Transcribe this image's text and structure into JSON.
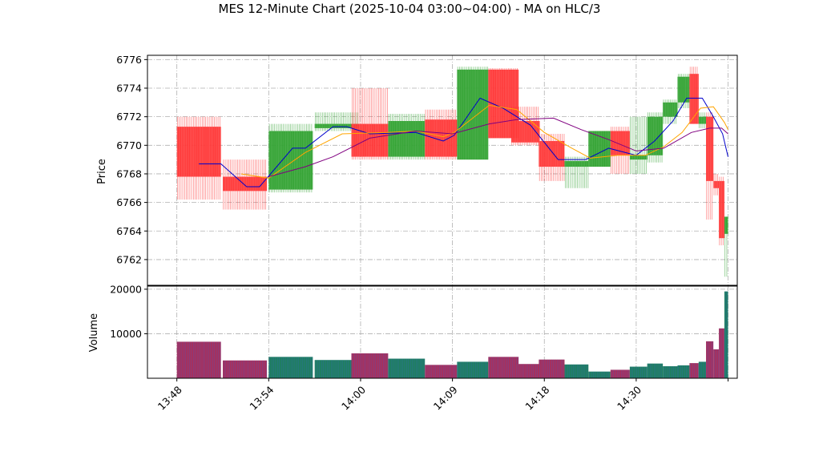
{
  "chart_data": {
    "type": "candlestick",
    "title": "MES 12-Minute Chart (2025-10-04 03:00~04:00) - MA on HLC/3",
    "price_panel": {
      "ylabel": "Price",
      "ylim": [
        6760.2,
        6776.3
      ],
      "yticks": [
        6762,
        6764,
        6766,
        6768,
        6770,
        6772,
        6774,
        6776
      ],
      "grid": true
    },
    "volume_panel": {
      "ylabel": "Volume",
      "ylim": [
        0,
        20700
      ],
      "yticks": [
        10000,
        20000
      ],
      "grid": true
    },
    "xlim": [
      -3.2,
      61.0
    ],
    "xticks": [
      {
        "x": 0,
        "label": "13:48"
      },
      {
        "x": 10,
        "label": "13:54"
      },
      {
        "x": 20,
        "label": "14:00"
      },
      {
        "x": 30,
        "label": "14:09"
      },
      {
        "x": 40,
        "label": "14:18"
      },
      {
        "x": 50,
        "label": "14:30"
      },
      {
        "x": 60,
        "label": ""
      }
    ],
    "colors": {
      "up": "#2ca02c",
      "down": "#ff3333",
      "volume_up": "#1f7f5f",
      "volume_down": "#a8305c",
      "ma_short": "#0000cc",
      "ma_mid": "#ffa500",
      "ma_long": "#800080"
    },
    "candles": [
      {
        "x0": 0,
        "x1": 4.8,
        "open": 6771.3,
        "high": 6772.0,
        "low": 6766.2,
        "close": 6767.8,
        "volume": 8200
      },
      {
        "x0": 5,
        "x1": 9.8,
        "open": 6767.8,
        "high": 6769.0,
        "low": 6765.5,
        "close": 6766.8,
        "volume": 4000
      },
      {
        "x0": 10,
        "x1": 14.8,
        "open": 6766.9,
        "high": 6771.5,
        "low": 6766.7,
        "close": 6771.0,
        "volume": 4800
      },
      {
        "x0": 15,
        "x1": 19.8,
        "open": 6771.2,
        "high": 6772.3,
        "low": 6771.0,
        "close": 6771.5,
        "volume": 4100
      },
      {
        "x0": 19,
        "x1": 23,
        "open": 6771.5,
        "high": 6774.0,
        "low": 6769.0,
        "close": 6769.2,
        "volume": 5600
      },
      {
        "x0": 23,
        "x1": 27,
        "open": 6769.2,
        "high": 6772.2,
        "low": 6769.0,
        "close": 6771.7,
        "volume": 4400
      },
      {
        "x0": 27,
        "x1": 30.5,
        "open": 6771.8,
        "high": 6772.5,
        "low": 6769.0,
        "close": 6769.2,
        "volume": 3000
      },
      {
        "x0": 30.5,
        "x1": 33.9,
        "open": 6769.0,
        "high": 6775.5,
        "low": 6769.0,
        "close": 6775.3,
        "volume": 3700
      },
      {
        "x0": 33.9,
        "x1": 37.2,
        "open": 6775.3,
        "high": 6775.4,
        "low": 6770.5,
        "close": 6770.5,
        "volume": 4800
      },
      {
        "x0": 36.4,
        "x1": 39.5,
        "open": 6771.7,
        "high": 6772.7,
        "low": 6770.0,
        "close": 6770.2,
        "volume": 3200
      },
      {
        "x0": 39.4,
        "x1": 42.2,
        "open": 6770.3,
        "high": 6770.8,
        "low": 6767.5,
        "close": 6768.5,
        "volume": 4200
      },
      {
        "x0": 42.2,
        "x1": 44.8,
        "open": 6768.5,
        "high": 6769.2,
        "low": 6767.0,
        "close": 6768.9,
        "volume": 3100
      },
      {
        "x0": 44.8,
        "x1": 47.2,
        "open": 6768.5,
        "high": 6771.0,
        "low": 6768.5,
        "close": 6771.0,
        "volume": 1500
      },
      {
        "x0": 47.2,
        "x1": 49.3,
        "open": 6771.0,
        "high": 6771.3,
        "low": 6768.0,
        "close": 6769.3,
        "volume": 1900
      },
      {
        "x0": 49.3,
        "x1": 51.2,
        "open": 6769.0,
        "high": 6772.0,
        "low": 6768.0,
        "close": 6769.3,
        "volume": 2600
      },
      {
        "x0": 51.2,
        "x1": 52.9,
        "open": 6769.3,
        "high": 6772.3,
        "low": 6768.8,
        "close": 6772.0,
        "volume": 3300
      },
      {
        "x0": 52.9,
        "x1": 54.5,
        "open": 6772.0,
        "high": 6773.2,
        "low": 6771.5,
        "close": 6773.0,
        "volume": 2700
      },
      {
        "x0": 54.5,
        "x1": 55.8,
        "open": 6773.0,
        "high": 6775.0,
        "low": 6772.6,
        "close": 6774.8,
        "volume": 2900
      },
      {
        "x0": 55.8,
        "x1": 56.8,
        "open": 6775.0,
        "high": 6775.5,
        "low": 6771.5,
        "close": 6771.5,
        "volume": 3400
      },
      {
        "x0": 56.8,
        "x1": 57.6,
        "open": 6771.5,
        "high": 6772.3,
        "low": 6771.2,
        "close": 6772.0,
        "volume": 3700
      },
      {
        "x0": 57.6,
        "x1": 58.4,
        "open": 6772.0,
        "high": 6772.3,
        "low": 6764.8,
        "close": 6767.5,
        "volume": 8300
      },
      {
        "x0": 58.4,
        "x1": 59.0,
        "open": 6767.5,
        "high": 6768.0,
        "low": 6766.5,
        "close": 6767.0,
        "volume": 6500
      },
      {
        "x0": 59.0,
        "x1": 59.6,
        "open": 6767.5,
        "high": 6767.8,
        "low": 6763.0,
        "close": 6763.5,
        "volume": 11200
      },
      {
        "x0": 59.6,
        "x1": 60.0,
        "open": 6763.8,
        "high": 6765.0,
        "low": 6760.8,
        "close": 6765.0,
        "volume": 19500
      }
    ],
    "ma_series": [
      {
        "color": "#0000cc",
        "points": [
          [
            2.4,
            6768.7
          ],
          [
            4.8,
            6768.7
          ],
          [
            7.6,
            6767.1
          ],
          [
            9,
            6767.1
          ],
          [
            12.6,
            6769.8
          ],
          [
            14,
            6769.8
          ],
          [
            17,
            6771.3
          ],
          [
            18.5,
            6771.3
          ],
          [
            21,
            6770.8
          ],
          [
            26,
            6770.9
          ],
          [
            29,
            6770.3
          ],
          [
            30.2,
            6770.7
          ],
          [
            33,
            6773.3
          ],
          [
            35.5,
            6772.6
          ],
          [
            38.5,
            6771.4
          ],
          [
            41.5,
            6769.0
          ],
          [
            44.5,
            6769.0
          ],
          [
            47,
            6769.8
          ],
          [
            50,
            6769.3
          ],
          [
            52,
            6770.3
          ],
          [
            54,
            6771.7
          ],
          [
            55.5,
            6773.3
          ],
          [
            57.2,
            6773.3
          ],
          [
            58.4,
            6772.0
          ],
          [
            59.4,
            6770.8
          ],
          [
            60,
            6769.2
          ]
        ]
      },
      {
        "color": "#ffa500",
        "points": [
          [
            7,
            6768.0
          ],
          [
            10,
            6767.7
          ],
          [
            14,
            6769.5
          ],
          [
            18,
            6770.8
          ],
          [
            23,
            6770.9
          ],
          [
            26,
            6771.0
          ],
          [
            29,
            6770.6
          ],
          [
            30.2,
            6770.9
          ],
          [
            34,
            6772.8
          ],
          [
            37,
            6772.5
          ],
          [
            40,
            6770.9
          ],
          [
            43,
            6769.8
          ],
          [
            45,
            6769.1
          ],
          [
            48,
            6769.3
          ],
          [
            51,
            6769.3
          ],
          [
            53,
            6769.9
          ],
          [
            55,
            6770.9
          ],
          [
            57,
            6772.6
          ],
          [
            58.4,
            6772.7
          ],
          [
            59.6,
            6771.6
          ],
          [
            60,
            6771.1
          ]
        ]
      },
      {
        "color": "#800080",
        "points": [
          [
            10,
            6767.8
          ],
          [
            14,
            6768.5
          ],
          [
            17,
            6769.2
          ],
          [
            21,
            6770.5
          ],
          [
            26,
            6771.0
          ],
          [
            30,
            6770.8
          ],
          [
            34,
            6771.5
          ],
          [
            37,
            6771.8
          ],
          [
            41,
            6771.9
          ],
          [
            44,
            6771.1
          ],
          [
            47,
            6770.4
          ],
          [
            50,
            6769.6
          ],
          [
            53,
            6769.8
          ],
          [
            56,
            6770.9
          ],
          [
            58,
            6771.2
          ],
          [
            59.3,
            6771.2
          ],
          [
            60,
            6770.8
          ]
        ]
      }
    ]
  }
}
